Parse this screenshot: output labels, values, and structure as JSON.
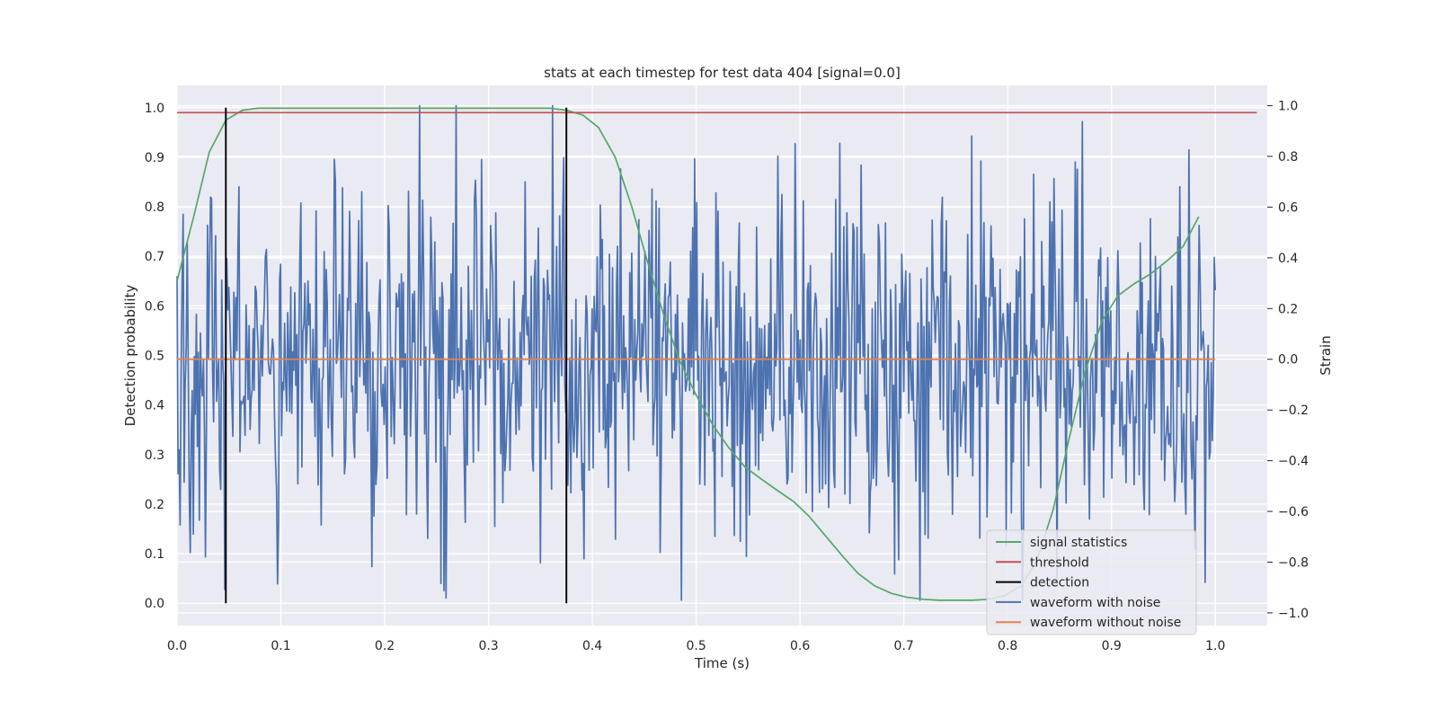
{
  "chart_data": {
    "type": "line",
    "title": "stats at each timestep for test data 404 [signal=0.0]",
    "xlabel": "Time (s)",
    "ylabel": "Detection probability",
    "y2label": "Strain",
    "xlim": [
      0.0,
      1.05
    ],
    "ylim": [
      -0.045,
      1.045
    ],
    "y2lim": [
      -1.05,
      1.08
    ],
    "xticks": [
      0.0,
      0.1,
      0.2,
      0.3,
      0.4,
      0.5,
      0.6,
      0.7,
      0.8,
      0.9,
      1.0
    ],
    "xtick_labels": [
      "0.0",
      "0.1",
      "0.2",
      "0.3",
      "0.4",
      "0.5",
      "0.6",
      "0.7",
      "0.8",
      "0.9",
      "1.0"
    ],
    "yticks": [
      0.0,
      0.1,
      0.2,
      0.3,
      0.4,
      0.5,
      0.6,
      0.7,
      0.8,
      0.9,
      1.0
    ],
    "ytick_labels": [
      "0.0",
      "0.1",
      "0.2",
      "0.3",
      "0.4",
      "0.5",
      "0.6",
      "0.7",
      "0.8",
      "0.9",
      "1.0"
    ],
    "y2ticks": [
      -1.0,
      -0.8,
      -0.6,
      -0.4,
      -0.2,
      0.0,
      0.2,
      0.4,
      0.6,
      0.8,
      1.0
    ],
    "y2tick_labels": [
      "−1.0",
      "−0.8",
      "−0.6",
      "−0.4",
      "−0.2",
      "0.0",
      "0.2",
      "0.4",
      "0.6",
      "0.8",
      "1.0"
    ],
    "grid": true,
    "legend_position": "bottom-right",
    "series": [
      {
        "name": "signal statistics",
        "color": "#55a868",
        "axis": "left",
        "x": [
          0.0,
          0.016,
          0.031,
          0.047,
          0.063,
          0.078,
          0.094,
          0.109,
          0.125,
          0.141,
          0.156,
          0.172,
          0.188,
          0.203,
          0.219,
          0.234,
          0.25,
          0.266,
          0.281,
          0.297,
          0.313,
          0.328,
          0.344,
          0.359,
          0.375,
          0.391,
          0.406,
          0.422,
          0.438,
          0.453,
          0.469,
          0.484,
          0.5,
          0.516,
          0.531,
          0.547,
          0.563,
          0.578,
          0.594,
          0.609,
          0.625,
          0.641,
          0.656,
          0.672,
          0.688,
          0.703,
          0.719,
          0.734,
          0.75,
          0.766,
          0.781,
          0.797,
          0.813,
          0.828,
          0.844,
          0.859,
          0.875,
          0.891,
          0.906,
          0.922,
          0.938,
          0.953,
          0.969,
          0.984
        ],
        "y": [
          0.65,
          0.78,
          0.91,
          0.975,
          0.995,
          0.999,
          0.999,
          0.999,
          0.999,
          0.999,
          0.999,
          0.999,
          0.999,
          0.999,
          0.999,
          0.999,
          0.999,
          0.999,
          0.999,
          0.999,
          0.999,
          0.999,
          0.999,
          0.999,
          0.995,
          0.985,
          0.96,
          0.9,
          0.8,
          0.69,
          0.58,
          0.49,
          0.42,
          0.36,
          0.315,
          0.275,
          0.25,
          0.228,
          0.205,
          0.175,
          0.135,
          0.095,
          0.06,
          0.035,
          0.02,
          0.012,
          0.008,
          0.006,
          0.006,
          0.006,
          0.008,
          0.015,
          0.035,
          0.085,
          0.19,
          0.33,
          0.47,
          0.57,
          0.62,
          0.645,
          0.665,
          0.69,
          0.72,
          0.78
        ]
      },
      {
        "name": "threshold",
        "color": "#c44e52",
        "axis": "left",
        "x": [
          0.0,
          1.04
        ],
        "y": [
          0.99,
          0.99
        ]
      },
      {
        "name": "detection",
        "color": "#000000",
        "axis": "left",
        "segments": [
          {
            "x": 0.047,
            "y0": 0.0,
            "y1": 1.0
          },
          {
            "x": 0.375,
            "y0": 0.0,
            "y1": 1.0
          }
        ]
      },
      {
        "name": "waveform with noise",
        "color": "#4c72b0",
        "axis": "right",
        "x_start": 0.0,
        "x_end": 1.0,
        "n_points": 1024,
        "amplitude_range": [
          -0.95,
          1.0
        ],
        "noise_std": 0.33,
        "notable_peaks": [
          {
            "x": 0.362,
            "y": 1.0
          },
          {
            "x": 0.486,
            "y": -0.95
          },
          {
            "x": 0.595,
            "y": 0.85
          },
          {
            "x": 0.765,
            "y": 0.88
          },
          {
            "x": 0.027,
            "y": -0.78
          },
          {
            "x": 0.99,
            "y": -0.88
          }
        ]
      },
      {
        "name": "waveform without noise",
        "color": "#dd8452",
        "axis": "right",
        "x": [
          0.0,
          1.0
        ],
        "y": [
          0.0,
          0.0
        ]
      }
    ]
  }
}
